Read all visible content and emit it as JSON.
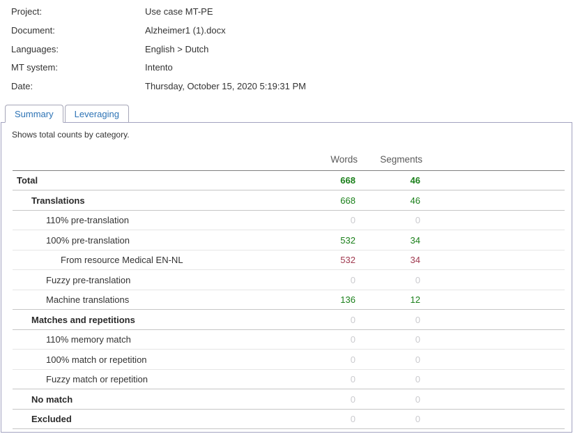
{
  "meta": {
    "fields": [
      {
        "label": "Project:",
        "value": "Use case MT-PE"
      },
      {
        "label": "Document:",
        "value": "Alzheimer1 (1).docx"
      },
      {
        "label": "Languages:",
        "value": "English > Dutch"
      },
      {
        "label": "MT system:",
        "value": "Intento"
      },
      {
        "label": "Date:",
        "value": "Thursday, October 15, 2020 5:19:31 PM"
      }
    ]
  },
  "tabs": [
    {
      "label": "Summary",
      "active": true
    },
    {
      "label": "Leveraging",
      "active": false
    }
  ],
  "panel": {
    "description": "Shows total counts by category."
  },
  "table": {
    "columns": [
      "Words",
      "Segments"
    ],
    "rows": [
      {
        "category": "Total",
        "words": "668",
        "segments": "46",
        "indent": 0,
        "group": true,
        "value_color": "green",
        "value_bold": true
      },
      {
        "category": "Translations",
        "words": "668",
        "segments": "46",
        "indent": 1,
        "group": true,
        "value_color": "green"
      },
      {
        "category": "110% pre-translation",
        "words": "0",
        "segments": "0",
        "indent": 2,
        "group": false,
        "value_color": "gray"
      },
      {
        "category": "100% pre-translation",
        "words": "532",
        "segments": "34",
        "indent": 2,
        "group": false,
        "value_color": "green"
      },
      {
        "category": "From resource Medical EN-NL",
        "words": "532",
        "segments": "34",
        "indent": 3,
        "group": false,
        "value_color": "maroon"
      },
      {
        "category": "Fuzzy pre-translation",
        "words": "0",
        "segments": "0",
        "indent": 2,
        "group": false,
        "value_color": "gray"
      },
      {
        "category": "Machine translations",
        "words": "136",
        "segments": "12",
        "indent": 2,
        "group": false,
        "value_color": "green"
      },
      {
        "category": "Matches and repetitions",
        "words": "0",
        "segments": "0",
        "indent": 1,
        "group": true,
        "value_color": "gray"
      },
      {
        "category": "110% memory match",
        "words": "0",
        "segments": "0",
        "indent": 2,
        "group": false,
        "value_color": "gray"
      },
      {
        "category": "100% match or repetition",
        "words": "0",
        "segments": "0",
        "indent": 2,
        "group": false,
        "value_color": "gray"
      },
      {
        "category": "Fuzzy match or repetition",
        "words": "0",
        "segments": "0",
        "indent": 2,
        "group": false,
        "value_color": "gray"
      },
      {
        "category": "No match",
        "words": "0",
        "segments": "0",
        "indent": 1,
        "group": true,
        "value_color": "gray"
      },
      {
        "category": "Excluded",
        "words": "0",
        "segments": "0",
        "indent": 1,
        "group": true,
        "value_color": "gray"
      }
    ]
  },
  "colors": {
    "green": "#1b801b",
    "maroon": "#a03a50",
    "gray": "#cbcbcf",
    "tab_text": "#2d73b5",
    "panel_border": "#a2a2c0"
  }
}
